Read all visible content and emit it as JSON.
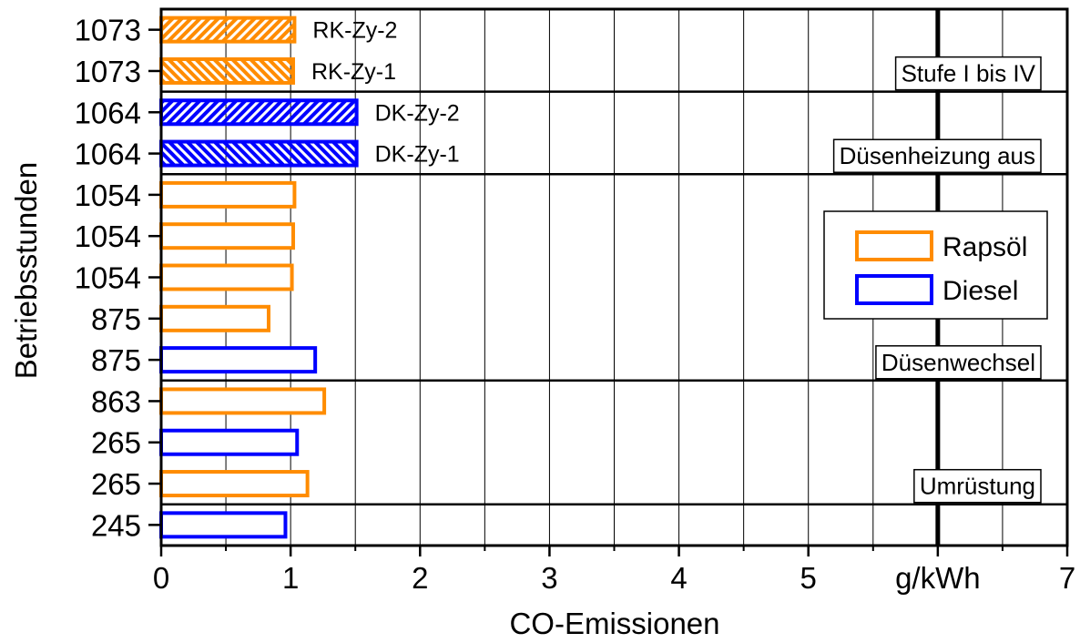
{
  "chart_data": {
    "type": "bar",
    "orientation": "horizontal",
    "xlabel": "CO-Emissionen",
    "ylabel": "Betriebsstunden",
    "xlim": [
      0,
      7
    ],
    "x_ticks": [
      "0",
      "1",
      "2",
      "3",
      "4",
      "5",
      "g/kWh",
      "7"
    ],
    "grid_x": true,
    "reference_line_x": 6,
    "categories": [
      "1073",
      "1073",
      "1064",
      "1064",
      "1054",
      "1054",
      "1054",
      "875",
      "875",
      "863",
      "265",
      "265",
      "245"
    ],
    "values": [
      1.03,
      1.02,
      1.51,
      1.51,
      1.03,
      1.02,
      1.01,
      0.83,
      1.19,
      1.26,
      1.05,
      1.13,
      0.96
    ],
    "fuel": [
      "Rapsöl",
      "Rapsöl",
      "Diesel",
      "Diesel",
      "Rapsöl",
      "Rapsöl",
      "Rapsöl",
      "Rapsöl",
      "Diesel",
      "Rapsöl",
      "Diesel",
      "Rapsöl",
      "Diesel"
    ],
    "hatch": [
      "up",
      "down",
      "up",
      "down",
      "none",
      "none",
      "none",
      "none",
      "none",
      "none",
      "none",
      "none",
      "none"
    ],
    "bar_labels": [
      "RK-Zy-2",
      "RK-Zy-1",
      "DK-Zy-2",
      "DK-Zy-1",
      "",
      "",
      "",
      "",
      "",
      "",
      "",
      "",
      ""
    ],
    "legend": [
      {
        "name": "Rapsöl",
        "color": "#ff8c00"
      },
      {
        "name": "Diesel",
        "color": "#0000ff"
      }
    ],
    "legend_position": "right-middle",
    "separators": [
      {
        "after_index": 1,
        "label": "Stufe I bis IV"
      },
      {
        "after_index": 3,
        "label": "Düsenheizung aus"
      },
      {
        "after_index": 8,
        "label": "Düsenwechsel"
      },
      {
        "after_index": 11,
        "label": "Umrüstung"
      }
    ]
  }
}
